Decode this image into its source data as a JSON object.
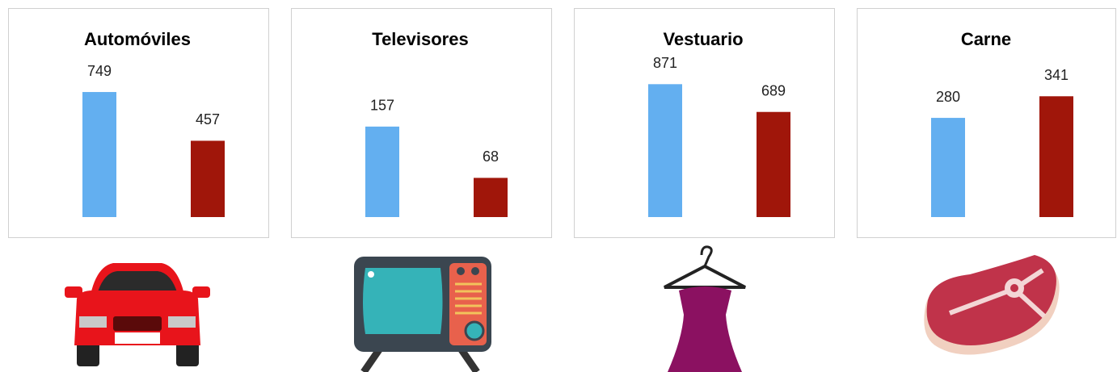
{
  "chart_data": [
    {
      "type": "bar",
      "title": "Automóviles",
      "values": [
        749,
        457
      ],
      "colors": [
        "#63aff0",
        "#a0160a"
      ],
      "ylim": [
        0,
        870
      ]
    },
    {
      "type": "bar",
      "title": "Televisores",
      "values": [
        157,
        68
      ],
      "colors": [
        "#63aff0",
        "#a0160a"
      ],
      "ylim": [
        0,
        252
      ]
    },
    {
      "type": "bar",
      "title": "Vestuario",
      "values": [
        871,
        689
      ],
      "colors": [
        "#63aff0",
        "#a0160a"
      ],
      "ylim": [
        0,
        952
      ]
    },
    {
      "type": "bar",
      "title": "Carne",
      "values": [
        280,
        341
      ],
      "colors": [
        "#63aff0",
        "#a0160a"
      ],
      "ylim": [
        0,
        410
      ]
    }
  ]
}
